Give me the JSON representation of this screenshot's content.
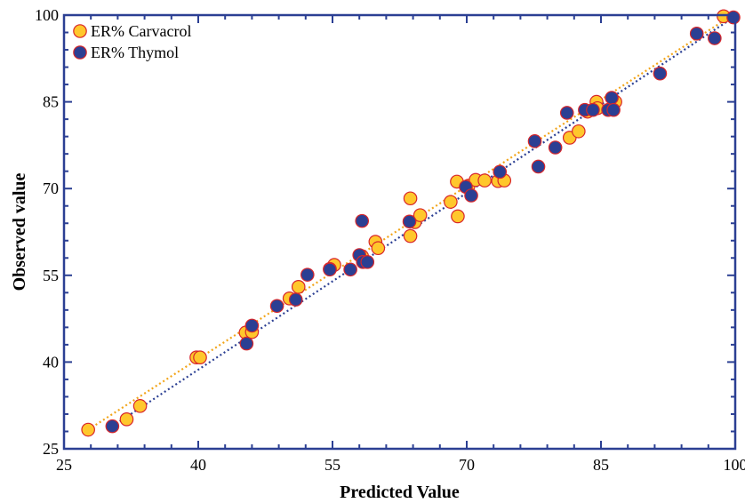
{
  "chart_data": {
    "type": "scatter",
    "xlabel": "Predicted Value",
    "ylabel": "Observed value",
    "xlim": [
      25,
      100
    ],
    "ylim": [
      25,
      100
    ],
    "xticks": [
      "25",
      "40",
      "55",
      "70",
      "85",
      "100"
    ],
    "yticks": [
      "25",
      "40",
      "55",
      "70",
      "85",
      "100"
    ],
    "grid": false,
    "legend_position": "top-left",
    "series": [
      {
        "name": "ER% Carvacrol",
        "color": "#FFC72C",
        "edge": "#D8262A",
        "fit_line": [
          [
            27.7,
            28.3
          ],
          [
            99.5,
            99.8
          ]
        ],
        "points": [
          [
            27.7,
            28.3
          ],
          [
            32.0,
            30.1
          ],
          [
            33.5,
            32.4
          ],
          [
            39.8,
            40.8
          ],
          [
            40.2,
            40.8
          ],
          [
            45.3,
            45.1
          ],
          [
            46.0,
            45.2
          ],
          [
            50.2,
            51.0
          ],
          [
            51.2,
            53.0
          ],
          [
            55.2,
            56.8
          ],
          [
            54.7,
            56.1
          ],
          [
            58.3,
            58.3
          ],
          [
            59.8,
            60.8
          ],
          [
            60.1,
            59.7
          ],
          [
            63.7,
            68.3
          ],
          [
            63.7,
            61.8
          ],
          [
            64.2,
            64.2
          ],
          [
            64.8,
            65.4
          ],
          [
            68.2,
            67.7
          ],
          [
            68.9,
            71.2
          ],
          [
            69.0,
            65.2
          ],
          [
            70.2,
            70.5
          ],
          [
            71.0,
            71.5
          ],
          [
            72.0,
            71.4
          ],
          [
            73.5,
            71.3
          ],
          [
            74.2,
            71.4
          ],
          [
            81.5,
            78.8
          ],
          [
            82.5,
            79.9
          ],
          [
            83.5,
            83.3
          ],
          [
            84.5,
            85.0
          ],
          [
            84.6,
            83.9
          ],
          [
            86.6,
            85.0
          ],
          [
            98.7,
            99.8
          ]
        ]
      },
      {
        "name": "ER% Thymol",
        "color": "#2B3F93",
        "edge": "#D8262A",
        "fit_line": [
          [
            30.4,
            28.9
          ],
          [
            99.8,
            99.6
          ]
        ],
        "points": [
          [
            30.4,
            28.9
          ],
          [
            45.4,
            43.2
          ],
          [
            46.0,
            46.3
          ],
          [
            48.8,
            49.7
          ],
          [
            50.9,
            50.8
          ],
          [
            52.2,
            55.1
          ],
          [
            54.7,
            56.0
          ],
          [
            57.0,
            56.0
          ],
          [
            58.3,
            64.4
          ],
          [
            58.0,
            58.5
          ],
          [
            58.4,
            57.3
          ],
          [
            58.9,
            57.3
          ],
          [
            63.6,
            64.3
          ],
          [
            69.9,
            70.3
          ],
          [
            70.5,
            68.8
          ],
          [
            73.7,
            72.9
          ],
          [
            77.6,
            78.2
          ],
          [
            78.0,
            73.8
          ],
          [
            79.9,
            77.1
          ],
          [
            81.2,
            83.1
          ],
          [
            83.2,
            83.6
          ],
          [
            84.1,
            83.6
          ],
          [
            85.8,
            83.6
          ],
          [
            86.2,
            85.7
          ],
          [
            86.4,
            83.6
          ],
          [
            91.6,
            89.9
          ],
          [
            95.7,
            96.8
          ],
          [
            97.7,
            96.0
          ],
          [
            99.8,
            99.6
          ]
        ]
      }
    ]
  }
}
